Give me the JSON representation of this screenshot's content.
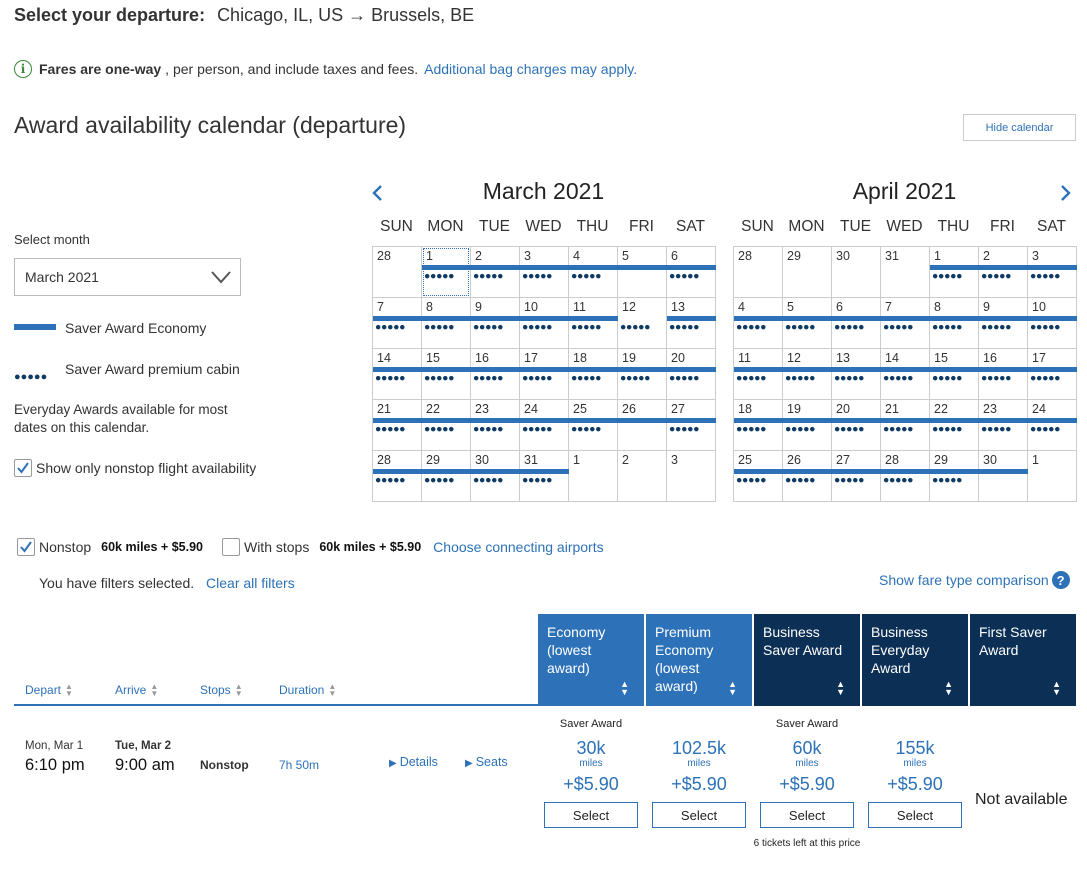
{
  "header": {
    "label": "Select your departure:",
    "route": "Chicago, IL, US → Brussels, BE"
  },
  "info": {
    "bold": "Fares are one-way",
    "rest": ", per person, and include taxes and fees.",
    "link": "Additional bag charges may apply."
  },
  "calendar": {
    "title": "Award availability calendar (departure)",
    "hide_label": "Hide calendar",
    "select_month_label": "Select month",
    "selected_month": "March 2021",
    "legend_economy": "Saver Award Economy",
    "legend_premium": "Saver Award premium cabin",
    "everyday_note": "Everyday Awards available for most dates on this calendar.",
    "nonstop_only_label": "Show only nonstop flight availability",
    "nonstop_only_checked": true,
    "weekdays": [
      "SUN",
      "MON",
      "TUE",
      "WED",
      "THU",
      "FRI",
      "SAT"
    ],
    "months": [
      {
        "title": "March 2021",
        "weeks": [
          [
            {
              "d": "28",
              "e": false,
              "p": false
            },
            {
              "d": "1",
              "e": true,
              "p": true,
              "sel": true
            },
            {
              "d": "2",
              "e": true,
              "p": true
            },
            {
              "d": "3",
              "e": true,
              "p": true
            },
            {
              "d": "4",
              "e": true,
              "p": true
            },
            {
              "d": "5",
              "e": true,
              "p": false
            },
            {
              "d": "6",
              "e": true,
              "p": true
            }
          ],
          [
            {
              "d": "7",
              "e": true,
              "p": true
            },
            {
              "d": "8",
              "e": true,
              "p": true
            },
            {
              "d": "9",
              "e": true,
              "p": true
            },
            {
              "d": "10",
              "e": true,
              "p": true
            },
            {
              "d": "11",
              "e": true,
              "p": true
            },
            {
              "d": "12",
              "e": false,
              "p": true
            },
            {
              "d": "13",
              "e": true,
              "p": true
            }
          ],
          [
            {
              "d": "14",
              "e": true,
              "p": true
            },
            {
              "d": "15",
              "e": true,
              "p": true
            },
            {
              "d": "16",
              "e": true,
              "p": true
            },
            {
              "d": "17",
              "e": true,
              "p": true
            },
            {
              "d": "18",
              "e": true,
              "p": true
            },
            {
              "d": "19",
              "e": true,
              "p": true
            },
            {
              "d": "20",
              "e": true,
              "p": true
            }
          ],
          [
            {
              "d": "21",
              "e": true,
              "p": true
            },
            {
              "d": "22",
              "e": true,
              "p": true
            },
            {
              "d": "23",
              "e": true,
              "p": true
            },
            {
              "d": "24",
              "e": true,
              "p": true
            },
            {
              "d": "25",
              "e": true,
              "p": true
            },
            {
              "d": "26",
              "e": true,
              "p": false
            },
            {
              "d": "27",
              "e": true,
              "p": true
            }
          ],
          [
            {
              "d": "28",
              "e": true,
              "p": true
            },
            {
              "d": "29",
              "e": true,
              "p": true
            },
            {
              "d": "30",
              "e": true,
              "p": true
            },
            {
              "d": "31",
              "e": true,
              "p": true
            },
            {
              "d": "1",
              "e": false,
              "p": false
            },
            {
              "d": "2",
              "e": false,
              "p": false
            },
            {
              "d": "3",
              "e": false,
              "p": false
            }
          ]
        ]
      },
      {
        "title": "April 2021",
        "weeks": [
          [
            {
              "d": "28",
              "e": false,
              "p": false
            },
            {
              "d": "29",
              "e": false,
              "p": false
            },
            {
              "d": "30",
              "e": false,
              "p": false
            },
            {
              "d": "31",
              "e": false,
              "p": false
            },
            {
              "d": "1",
              "e": true,
              "p": true
            },
            {
              "d": "2",
              "e": true,
              "p": true
            },
            {
              "d": "3",
              "e": true,
              "p": true
            }
          ],
          [
            {
              "d": "4",
              "e": true,
              "p": true
            },
            {
              "d": "5",
              "e": true,
              "p": true
            },
            {
              "d": "6",
              "e": true,
              "p": true
            },
            {
              "d": "7",
              "e": true,
              "p": true
            },
            {
              "d": "8",
              "e": true,
              "p": true
            },
            {
              "d": "9",
              "e": true,
              "p": true
            },
            {
              "d": "10",
              "e": true,
              "p": true
            }
          ],
          [
            {
              "d": "11",
              "e": true,
              "p": true
            },
            {
              "d": "12",
              "e": true,
              "p": true
            },
            {
              "d": "13",
              "e": true,
              "p": true
            },
            {
              "d": "14",
              "e": true,
              "p": true
            },
            {
              "d": "15",
              "e": true,
              "p": true
            },
            {
              "d": "16",
              "e": true,
              "p": true
            },
            {
              "d": "17",
              "e": true,
              "p": true
            }
          ],
          [
            {
              "d": "18",
              "e": true,
              "p": true
            },
            {
              "d": "19",
              "e": true,
              "p": true
            },
            {
              "d": "20",
              "e": true,
              "p": true
            },
            {
              "d": "21",
              "e": true,
              "p": true
            },
            {
              "d": "22",
              "e": true,
              "p": true
            },
            {
              "d": "23",
              "e": true,
              "p": true
            },
            {
              "d": "24",
              "e": true,
              "p": true
            }
          ],
          [
            {
              "d": "25",
              "e": true,
              "p": true
            },
            {
              "d": "26",
              "e": true,
              "p": true
            },
            {
              "d": "27",
              "e": true,
              "p": true
            },
            {
              "d": "28",
              "e": true,
              "p": true
            },
            {
              "d": "29",
              "e": true,
              "p": true
            },
            {
              "d": "30",
              "e": true,
              "p": false
            },
            {
              "d": "1",
              "e": false,
              "p": false
            }
          ]
        ]
      }
    ]
  },
  "filters": {
    "nonstop_label": "Nonstop",
    "nonstop_checked": true,
    "nonstop_price": "60k miles + $5.90",
    "stops_label": "With stops",
    "stops_checked": false,
    "stops_price": "60k miles + $5.90",
    "connecting_link": "Choose connecting airports",
    "selected_text": "You have filters selected.",
    "clear_link": "Clear all filters",
    "fare_compare_link": "Show fare type comparison"
  },
  "table": {
    "sort_columns": [
      "Depart",
      "Arrive",
      "Stops",
      "Duration"
    ],
    "fare_columns": [
      {
        "label": "Economy (lowest award)",
        "color": "#2d72b8"
      },
      {
        "label": "Premium Economy (lowest award)",
        "color": "#2d72b8"
      },
      {
        "label": "Business Saver Award",
        "color": "#0c2f56"
      },
      {
        "label": "Business Everyday Award",
        "color": "#0c2f56"
      },
      {
        "label": "First Saver Award",
        "color": "#0c2f56"
      }
    ],
    "flight": {
      "depart_date": "Mon, Mar 1",
      "depart_time": "6:10 pm",
      "arrive_date": "Tue, Mar 2",
      "arrive_time": "9:00 am",
      "stops": "Nonstop",
      "duration": "7h 50m",
      "details_link": "Details",
      "seats_link": "Seats",
      "fares": [
        {
          "tag": "Saver Award",
          "miles": "30k",
          "unit": "miles",
          "tax": "+$5.90",
          "button": "Select",
          "note": ""
        },
        {
          "tag": "",
          "miles": "102.5k",
          "unit": "miles",
          "tax": "+$5.90",
          "button": "Select",
          "note": ""
        },
        {
          "tag": "Saver Award",
          "miles": "60k",
          "unit": "miles",
          "tax": "+$5.90",
          "button": "Select",
          "note": "6 tickets left at this price"
        },
        {
          "tag": "",
          "miles": "155k",
          "unit": "miles",
          "tax": "+$5.90",
          "button": "Select",
          "note": ""
        }
      ],
      "first_status": "Not available"
    }
  }
}
